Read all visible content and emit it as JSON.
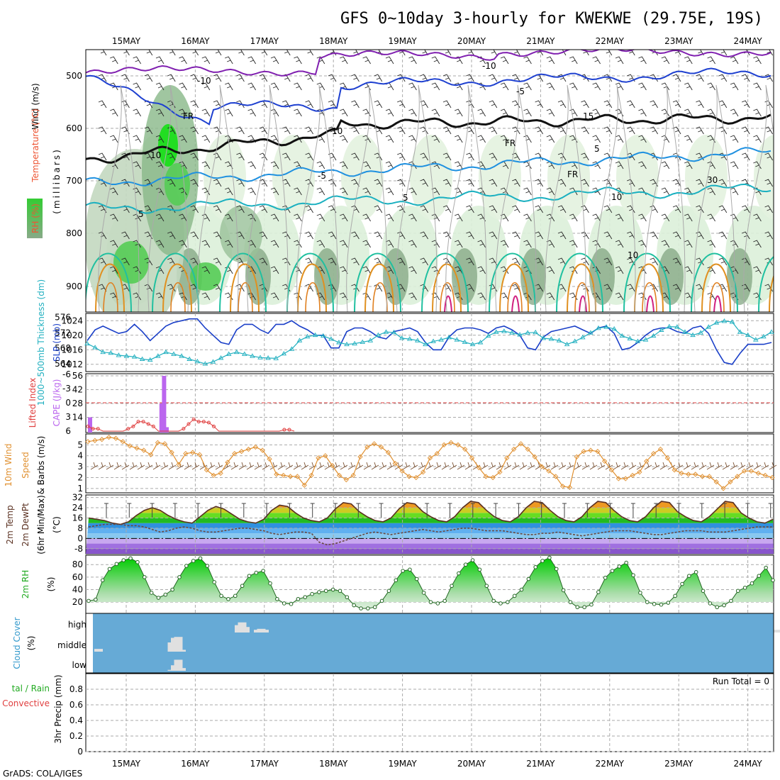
{
  "title": "GFS 0~10day 3-hourly for KWEKWE (29.75E, 19S)",
  "credit": "GrADS: COLA/IGES",
  "dates": [
    "15MAY",
    "16MAY",
    "17MAY",
    "18MAY",
    "19MAY",
    "20MAY",
    "21MAY",
    "22MAY",
    "23MAY",
    "24MAY"
  ],
  "colors": {
    "slp": "#1a3fc8",
    "thickness": "#22b0c0",
    "lifted_index": "#e04040",
    "cape": "#bb66ee",
    "wind10m": "#e09030",
    "barbs": "#7a5030",
    "temp": "#5a3020",
    "dewpt": "#6a4a40",
    "rh2m": "#22bb22",
    "cloud_bg": "#66aad6",
    "cloud": "#e0e0e0",
    "t_neg10": "#8020b0",
    "t_neg5": "#1e40d0",
    "t_5": "#1e90e0",
    "t_10": "#1ab0c0",
    "t_15": "#20c0a0",
    "t_20": "#e09020",
    "t_25": "#d02080"
  },
  "panels": {
    "upper_air": {
      "ylabels": {
        "wind": "Wind (m/s)",
        "temp": "Temperature (°C)",
        "rh": "RH (%)",
        "units": "(millibars)"
      },
      "y_ticks": [
        "500",
        "600",
        "700",
        "800",
        "900"
      ],
      "contour_labels": [
        "-10",
        "-10",
        "-5",
        "-5",
        "5",
        "5",
        "5",
        "10",
        "10",
        "10",
        "10",
        "15",
        "FR",
        "FR",
        "FR",
        "30",
        "30",
        "10",
        "10"
      ]
    },
    "slp": {
      "ylabel_left": "1000~500mb Thickness (dm)",
      "ylabel_right": "SLP (mb)",
      "left_ticks": [
        "576",
        "572",
        "568",
        "564"
      ],
      "right_ticks": [
        "1024",
        "1020",
        "1016",
        "1012"
      ]
    },
    "cape": {
      "ylabel_left": "Lifted Index",
      "ylabel_right": "CAPE (J/kg)",
      "left_ticks": [
        "-6",
        "-3",
        "0",
        "3",
        "6"
      ],
      "right_ticks": [
        "56",
        "42",
        "28",
        "14"
      ]
    },
    "wind": {
      "ylabel_left": "10m Wind",
      "ylabel_mid": "Speed",
      "ylabel_right": "& Barbs (m/s)",
      "ticks": [
        "5",
        "4",
        "3",
        "2",
        "1"
      ]
    },
    "temp": {
      "ylabel_1": "2m Temp",
      "ylabel_2": "2m DewPt",
      "ylabel_3": "(6hr Min/Max)",
      "ylabel_unit": "(°C)",
      "ticks": [
        "32",
        "24",
        "16",
        "8",
        "0",
        "-8"
      ]
    },
    "rh": {
      "ylabel": "2m RH",
      "unit": "(%)",
      "ticks": [
        "80",
        "60",
        "40",
        "20"
      ]
    },
    "cloud": {
      "ylabel": "Cloud Cover",
      "unit": "(%)",
      "levels": [
        "high",
        "middle",
        "low"
      ]
    },
    "precip": {
      "ylabel_1": "tal / Rain",
      "ylabel_2": "Convective",
      "ylabel_3": "3hr Precip (mm)",
      "ticks": [
        "0.8",
        "0.6",
        "0.4",
        "0.2",
        "0"
      ],
      "run_total": "Run Total = 0"
    }
  },
  "chart_data": [
    {
      "type": "line",
      "name": "SLP / 1000-500mb thickness",
      "series": [
        {
          "name": "SLP (mb)",
          "values": [
            1018.5,
            1021.5,
            1022.5,
            1021.5,
            1020.5,
            1021,
            1023,
            1021,
            1018.5,
            1020.5,
            1022.5,
            1023.5,
            1024,
            1024.5,
            1024.5,
            1022,
            1020,
            1018,
            1017.5,
            1021.5,
            1023,
            1023,
            1021.5,
            1020.5,
            1023,
            1023,
            1024,
            1022.5,
            1021.5,
            1020,
            1020,
            1016.5,
            1016.5,
            1021,
            1022,
            1022,
            1021,
            1019.5,
            1019,
            1021,
            1021.5,
            1022,
            1021,
            1018,
            1016,
            1016,
            1019.5,
            1021.5,
            1022,
            1022,
            1021.5,
            1020.5,
            1022,
            1022.5,
            1021.5,
            1020,
            1016.5,
            1016,
            1019.5,
            1021,
            1021.5,
            1022,
            1022.5,
            1021.5,
            1020.5,
            1022,
            1022.5,
            1020.5,
            1016,
            1016.5,
            1018,
            1020,
            1021.5,
            1022,
            1022,
            1021,
            1020.5,
            1022,
            1022.5,
            1020.5,
            1016,
            1012.5,
            1012,
            1015,
            1017.5,
            1017.5,
            1017.5,
            1018
          ]
        },
        {
          "name": "Thickness (dm)",
          "values": [
            569.2,
            568.2,
            567,
            566.8,
            566.2,
            566,
            565.8,
            565.2,
            565,
            566,
            567,
            566.5,
            566,
            565.2,
            564.6,
            564,
            564.5,
            565.5,
            566.5,
            567,
            566.5,
            566,
            565.6,
            565.5,
            565.4,
            566.6,
            567.8,
            570,
            571,
            571.4,
            571.2,
            570.4,
            569.5,
            569,
            569.2,
            569.6,
            570,
            571.4,
            572.2,
            572.1,
            570.6,
            570.4,
            570,
            569,
            569.8,
            570.2,
            570.8,
            570.2,
            569.6,
            569,
            569.5,
            571.2,
            572.2,
            572.4,
            572,
            571.5,
            572,
            572.1,
            570.6,
            570.4,
            570,
            569,
            569.8,
            570.8,
            572,
            573.2,
            573.5,
            573,
            571.2,
            570.5,
            569.8,
            570.2,
            571.2,
            572.7,
            573.6,
            573.5,
            572.2,
            571.4,
            572,
            573.5,
            574.6,
            575,
            574.8,
            572.2,
            571.4,
            570.2,
            571,
            572.2
          ]
        }
      ],
      "y_left": [
        562,
        577
      ],
      "y_right": [
        1010,
        1026
      ]
    },
    {
      "type": "bar",
      "name": "CAPE / Lifted Index",
      "series": [
        {
          "name": "CAPE (J/kg)",
          "indices": [
            0,
            28,
            29,
            30
          ],
          "values": [
            14,
            28,
            56,
            4
          ]
        },
        {
          "name": "Lifted Index",
          "start_index": 0,
          "values": [
            5,
            5.5,
            5.5,
            6,
            6,
            6,
            6,
            6,
            5.5,
            5,
            4,
            4,
            4.5,
            5,
            6,
            6,
            6,
            6,
            6,
            5.5,
            4.5,
            3.5,
            4,
            4,
            4.2,
            5,
            6,
            6,
            6,
            6,
            6,
            6,
            6,
            6,
            6,
            6,
            6,
            6,
            6,
            5.7,
            5.7,
            6
          ]
        }
      ],
      "y_left": [
        6,
        -6
      ],
      "y_right": [
        0,
        56
      ]
    },
    {
      "type": "line",
      "name": "10m wind speed (m/s)",
      "values": [
        5.3,
        5.4,
        5.5,
        5.7,
        5.6,
        5.3,
        4.9,
        4.7,
        4.5,
        4.1,
        5.2,
        5.1,
        4.3,
        3.2,
        4.2,
        4.3,
        4.1,
        2.7,
        2.2,
        2.4,
        3.4,
        4.2,
        4.4,
        4.6,
        4.8,
        4.5,
        3.7,
        2.3,
        2.2,
        2.1,
        2.1,
        1.3,
        2.2,
        3.8,
        4.0,
        3.1,
        2.2,
        1.8,
        2.2,
        3.9,
        4.8,
        5.1,
        4.8,
        4.3,
        3.3,
        2.6,
        2.1,
        2.0,
        2.5,
        3.8,
        4.2,
        5.0,
        5.2,
        5.0,
        4.6,
        3.8,
        2.9,
        2.1,
        2.0,
        2.5,
        3.8,
        4.6,
        5.1,
        4.6,
        3.9,
        3.0,
        2.6,
        2.1,
        1.2,
        1.1,
        3.9,
        4.4,
        4.5,
        4.4,
        3.5,
        2.7,
        1.9,
        1.9,
        2.2,
        2.5,
        3.5,
        4.2,
        4.6,
        3.8,
        2.7,
        2.4,
        2.3,
        2.3,
        2.1,
        2.1,
        1.6,
        1.0,
        1.6,
        2.1,
        2.6,
        2.6,
        2.4,
        2.2,
        2.0
      ],
      "ylim": [
        1,
        6
      ]
    },
    {
      "type": "area",
      "name": "2m temperature / dewpoint (°C)",
      "series": [
        {
          "name": "2m Temp",
          "values": [
            16,
            15,
            14,
            12,
            11,
            13,
            18,
            22,
            24,
            22,
            18,
            15,
            13,
            12,
            17,
            22,
            25,
            23,
            19,
            15,
            13,
            12,
            15,
            22,
            26,
            25,
            20,
            16,
            14,
            13,
            16,
            23,
            28,
            27,
            21,
            17,
            14,
            13,
            16,
            23,
            28,
            27,
            21,
            17,
            14,
            13,
            17,
            24,
            29,
            28,
            22,
            17,
            14,
            13,
            17,
            24,
            29,
            28,
            22,
            17,
            14,
            13,
            17,
            24,
            29,
            28,
            22,
            17,
            14,
            13,
            17,
            24,
            29,
            28,
            21,
            17,
            14,
            13,
            17,
            23,
            29,
            28,
            20,
            16,
            13,
            12,
            15
          ]
        },
        {
          "name": "2m DewPt",
          "values": [
            9,
            10,
            11,
            11,
            11,
            10,
            10,
            9,
            7,
            5,
            6,
            8,
            9,
            8,
            6,
            5,
            5,
            6,
            7,
            8,
            8,
            7,
            6,
            4,
            3,
            4,
            5,
            5,
            4,
            -3,
            -5,
            -4,
            -2,
            0,
            2,
            4,
            5,
            4,
            3,
            4,
            5,
            6,
            7,
            6,
            5,
            6,
            7,
            8,
            8,
            7,
            6,
            6,
            6,
            5,
            4,
            3,
            3,
            4,
            4,
            5,
            4,
            3,
            2,
            3,
            4,
            5,
            6,
            6,
            6,
            5,
            4,
            3,
            3,
            4,
            5,
            6,
            6,
            6,
            5,
            5,
            5,
            6,
            7,
            8,
            9,
            9,
            9
          ]
        }
      ],
      "ylim": [
        -12,
        34
      ]
    },
    {
      "type": "area",
      "name": "2m RH (%)",
      "values": [
        22,
        24,
        55,
        73,
        81,
        87,
        90,
        84,
        60,
        35,
        27,
        32,
        40,
        60,
        78,
        86,
        90,
        78,
        52,
        30,
        25,
        30,
        46,
        62,
        67,
        70,
        50,
        25,
        18,
        17,
        25,
        28,
        33,
        36,
        38,
        40,
        38,
        28,
        15,
        10,
        10,
        12,
        22,
        38,
        55,
        70,
        72,
        57,
        35,
        20,
        18,
        22,
        46,
        66,
        80,
        87,
        72,
        46,
        22,
        18,
        20,
        30,
        40,
        57,
        76,
        86,
        91,
        73,
        39,
        20,
        12,
        12,
        16,
        36,
        59,
        70,
        77,
        83,
        63,
        35,
        20,
        17,
        16,
        19,
        30,
        49,
        62,
        68,
        38,
        18,
        12,
        15,
        22,
        38,
        43,
        50,
        62,
        75,
        55
      ],
      "ylim": [
        0,
        100
      ]
    },
    {
      "type": "table",
      "name": "Cloud cover high/middle/low (%)",
      "columns": [
        "index",
        "high",
        "middle",
        "low"
      ],
      "rows": [
        [
          0,
          0,
          15,
          0
        ],
        [
          23,
          0,
          50,
          5
        ],
        [
          24,
          0,
          75,
          30
        ],
        [
          25,
          0,
          80,
          60
        ],
        [
          26,
          0,
          10,
          15
        ],
        [
          44,
          40,
          0,
          0
        ],
        [
          45,
          55,
          0,
          0
        ],
        [
          46,
          30,
          0,
          0
        ],
        [
          50,
          15,
          0,
          0
        ],
        [
          51,
          20,
          0,
          0
        ],
        [
          52,
          15,
          0,
          0
        ],
        [
          213,
          15,
          0,
          0
        ],
        [
          227,
          50,
          0,
          0
        ]
      ]
    },
    {
      "type": "bar",
      "name": "3hr precip (mm)",
      "values": [],
      "ylim": [
        0,
        1
      ]
    }
  ]
}
